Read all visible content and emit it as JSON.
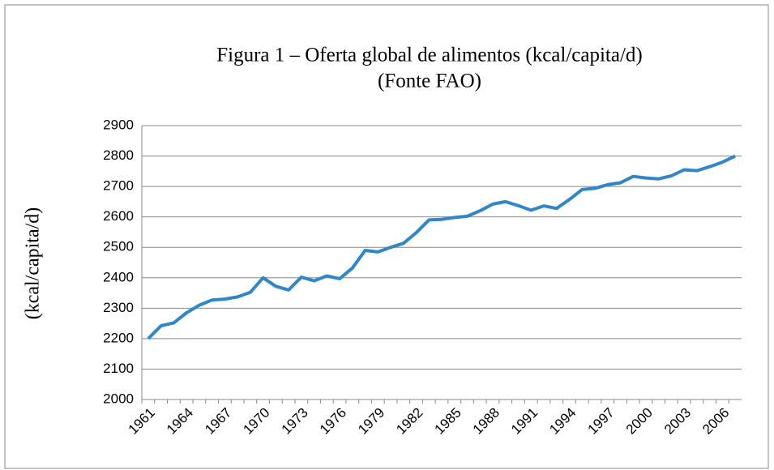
{
  "chart_data": {
    "type": "line",
    "title": "Figura 1 – Oferta global de alimentos (kcal/capita/d)",
    "subtitle": "(Fonte FAO)",
    "y_label": "(kcal/capita/d)",
    "categories": [
      "1961",
      null,
      null,
      "1964",
      null,
      null,
      "1967",
      null,
      null,
      "1970",
      null,
      null,
      "1973",
      null,
      null,
      "1976",
      null,
      null,
      "1979",
      null,
      null,
      "1982",
      null,
      null,
      "1985",
      null,
      null,
      "1988",
      null,
      null,
      "1991",
      null,
      null,
      "1994",
      null,
      null,
      "1997",
      null,
      null,
      "2000",
      null,
      null,
      "2003",
      null,
      null,
      "2006",
      null
    ],
    "series": [
      {
        "color": "#2f86c9",
        "values": [
          2200,
          2242,
          2252,
          2285,
          2310,
          2327,
          2330,
          2337,
          2352,
          2400,
          2372,
          2360,
          2402,
          2390,
          2406,
          2397,
          2432,
          2490,
          2485,
          2500,
          2513,
          2548,
          2590,
          2592,
          2598,
          2602,
          2620,
          2642,
          2650,
          2637,
          2622,
          2636,
          2628,
          2657,
          2690,
          2694,
          2706,
          2712,
          2733,
          2728,
          2725,
          2735,
          2755,
          2752,
          2765,
          2780,
          2800
        ]
      }
    ],
    "ylim": [
      2000,
      2900
    ],
    "yticks": [
      2000,
      2100,
      2200,
      2300,
      2400,
      2500,
      2600,
      2700,
      2800,
      2900
    ],
    "grid": true
  }
}
